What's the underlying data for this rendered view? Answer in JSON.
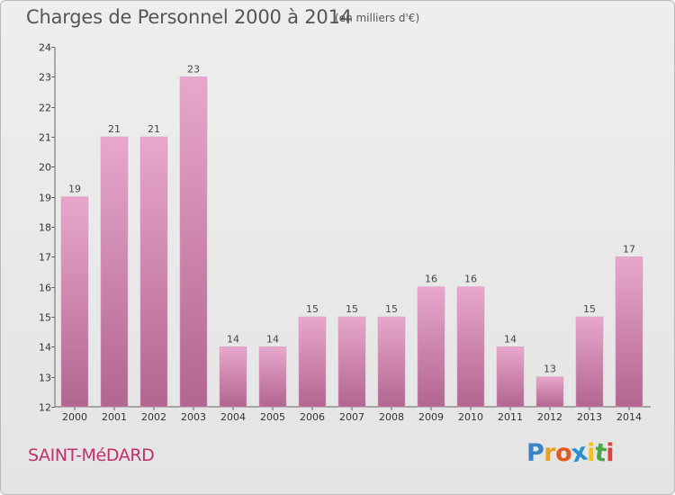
{
  "title": "Charges de Personnel 2000 à 2014",
  "subtitle": "(en milliers d'€)",
  "city": "SAINT-MéDARD",
  "logo": {
    "letters": [
      "P",
      "r",
      "o",
      "x",
      "i",
      "t",
      "i"
    ],
    "colors": [
      "#3a84c4",
      "#e8a020",
      "#e05a1e",
      "#2a8fd0",
      "#f0c020",
      "#49a842",
      "#d5453a"
    ]
  },
  "colors": {
    "bar_light": "#e8a7cc",
    "bar_dark": "#b26591",
    "title": "#555555",
    "city": "#c0306c"
  },
  "chart_data": {
    "type": "bar",
    "categories": [
      "2000",
      "2001",
      "2002",
      "2003",
      "2004",
      "2005",
      "2006",
      "2007",
      "2008",
      "2009",
      "2010",
      "2011",
      "2012",
      "2013",
      "2014"
    ],
    "values": [
      19,
      21,
      21,
      23,
      14,
      14,
      15,
      15,
      15,
      16,
      16,
      14,
      13,
      15,
      17
    ],
    "title": "Charges de Personnel 2000 à 2014",
    "xlabel": "",
    "ylabel": "",
    "ylim": [
      12,
      24
    ],
    "yticks": [
      12,
      13,
      14,
      15,
      16,
      17,
      18,
      19,
      20,
      21,
      22,
      23,
      24
    ],
    "grid": false,
    "data_labels": true
  }
}
